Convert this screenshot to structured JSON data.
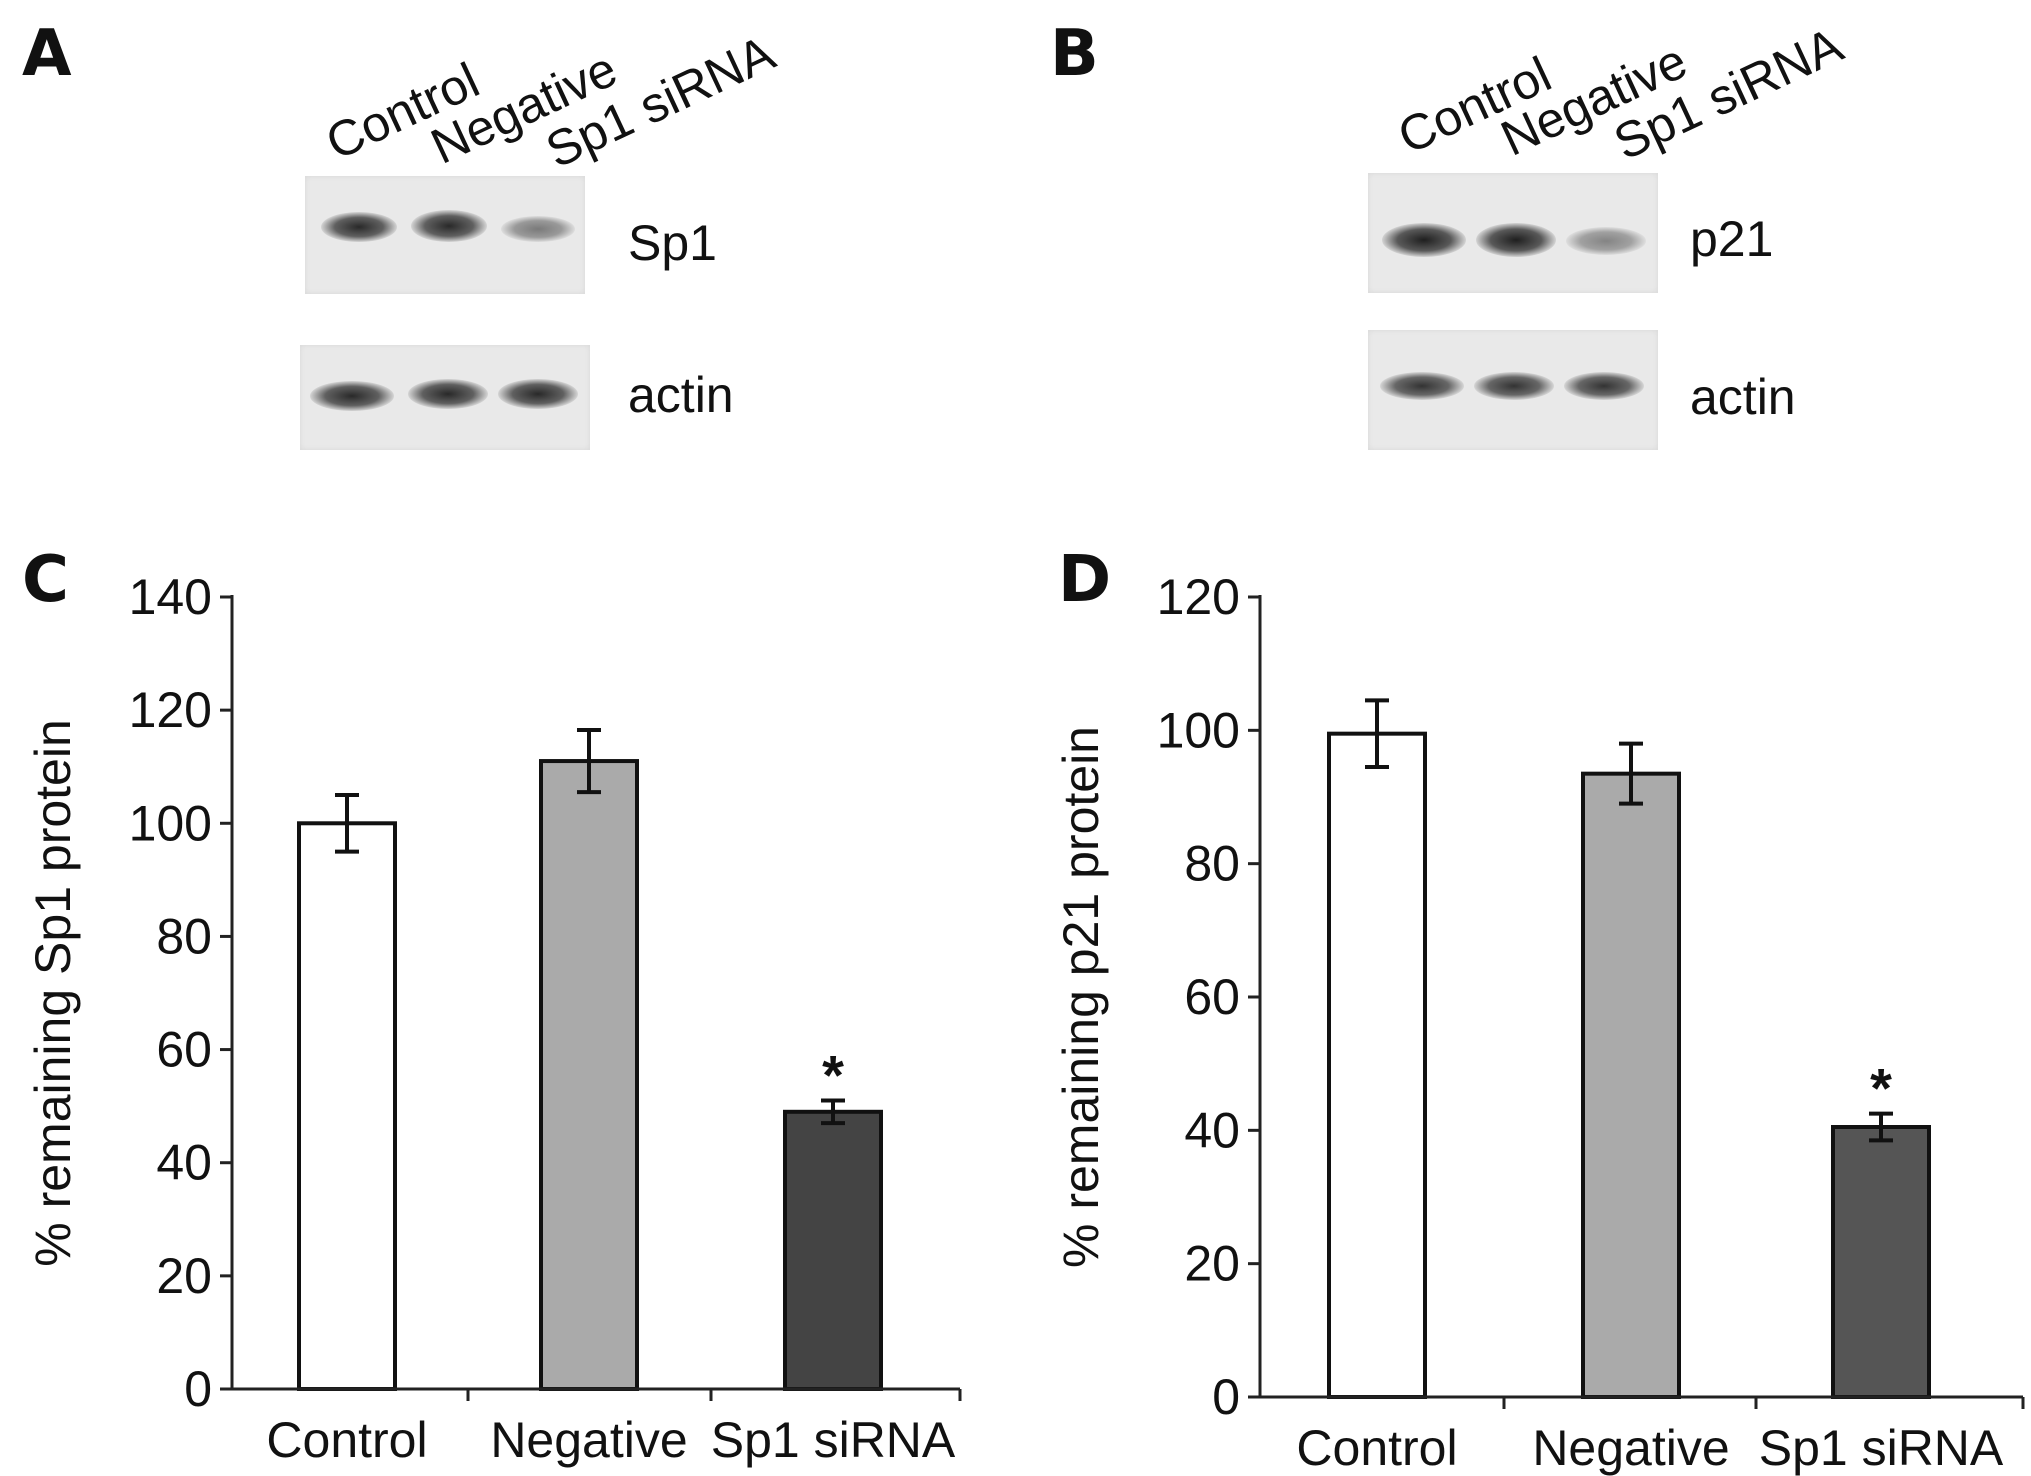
{
  "panels": {
    "A": {
      "letter": "A",
      "lanes": [
        "Control",
        "Negative",
        "Sp1 siRNA"
      ],
      "blots": [
        {
          "label": "Sp1",
          "intensities": [
            0.95,
            0.95,
            0.55
          ]
        },
        {
          "label": "actin",
          "intensities": [
            0.95,
            0.95,
            0.95
          ]
        }
      ]
    },
    "B": {
      "letter": "B",
      "lanes": [
        "Control",
        "Negative",
        "Sp1 siRNA"
      ],
      "blots": [
        {
          "label": "p21",
          "intensities": [
            1.0,
            1.0,
            0.5
          ]
        },
        {
          "label": "actin",
          "intensities": [
            0.9,
            0.9,
            0.9
          ]
        }
      ]
    },
    "C": {
      "letter": "C"
    },
    "D": {
      "letter": "D"
    }
  },
  "chart_data": [
    {
      "type": "bar",
      "panel": "C",
      "categories": [
        "Control",
        "Negative",
        "Sp1 siRNA"
      ],
      "values": [
        100,
        111,
        49
      ],
      "errors": [
        5,
        5.5,
        2
      ],
      "significance": [
        "",
        "",
        "*"
      ],
      "bar_colors": [
        "#ffffff",
        "#aaaaaa",
        "#444444"
      ],
      "ylabel": "% remaining Sp1 protein",
      "xlabel": "",
      "ylim": [
        0,
        140
      ],
      "yticks": [
        0,
        20,
        40,
        60,
        80,
        100,
        120,
        140
      ],
      "grid": false
    },
    {
      "type": "bar",
      "panel": "D",
      "categories": [
        "Control",
        "Negative",
        "Sp1 siRNA"
      ],
      "values": [
        99.5,
        93.5,
        40.5
      ],
      "errors": [
        5,
        4.5,
        2
      ],
      "significance": [
        "",
        "",
        "*"
      ],
      "bar_colors": [
        "#ffffff",
        "#aaaaaa",
        "#555555"
      ],
      "ylabel": "% remaining p21 protein",
      "xlabel": "",
      "ylim": [
        0,
        120
      ],
      "yticks": [
        0,
        20,
        40,
        60,
        80,
        100,
        120
      ],
      "grid": false
    }
  ]
}
